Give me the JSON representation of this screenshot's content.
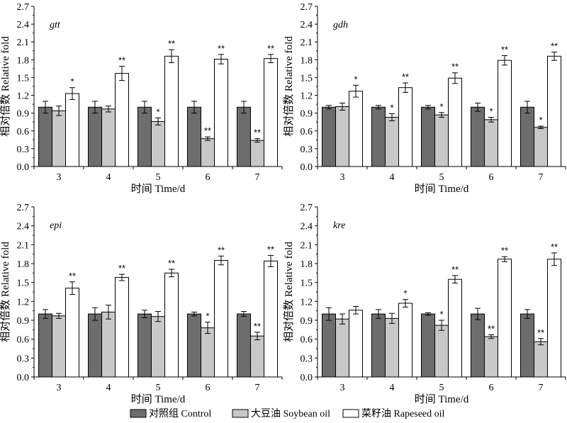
{
  "legend": [
    {
      "label": "对照组  Control",
      "color": "#6d6d6d"
    },
    {
      "label": "大豆油  Soybean oil",
      "color": "#c8c8c8"
    },
    {
      "label": "菜籽油  Rapeseed oil",
      "color": "#ffffff"
    }
  ],
  "chart_data": [
    {
      "type": "bar",
      "gene": "gtt",
      "categories": [
        "3",
        "4",
        "5",
        "6",
        "7"
      ],
      "xlabel": "时间 Time/d",
      "ylabel": "相对倍数 Relative fold",
      "ylim": [
        0,
        2.7
      ],
      "yticks": [
        "0.0",
        "0.3",
        "0.6",
        "0.9",
        "1.2",
        "1.5",
        "1.8",
        "2.1",
        "2.4",
        "2.7"
      ],
      "series": [
        {
          "name": "对照组 Control",
          "values": [
            1.0,
            1.0,
            1.0,
            1.0,
            1.0
          ],
          "errors": [
            0.1,
            0.1,
            0.1,
            0.1,
            0.1
          ],
          "sig": [
            "",
            "",
            "",
            "",
            ""
          ]
        },
        {
          "name": "大豆油 Soybean oil",
          "values": [
            0.94,
            0.97,
            0.76,
            0.47,
            0.44
          ],
          "errors": [
            0.08,
            0.05,
            0.06,
            0.03,
            0.03
          ],
          "sig": [
            "",
            "",
            "*",
            "**",
            "**"
          ]
        },
        {
          "name": "菜籽油 Rapeseed oil",
          "values": [
            1.23,
            1.57,
            1.86,
            1.81,
            1.82
          ],
          "errors": [
            0.1,
            0.12,
            0.11,
            0.08,
            0.07
          ],
          "sig": [
            "*",
            "**",
            "**",
            "**",
            "**"
          ]
        }
      ]
    },
    {
      "type": "bar",
      "gene": "gdh",
      "categories": [
        "3",
        "4",
        "5",
        "6",
        "7"
      ],
      "xlabel": "时间 Time/d",
      "ylabel": "相对倍数 Relative fold",
      "ylim": [
        0,
        2.7
      ],
      "yticks": [
        "0.0",
        "0.3",
        "0.6",
        "0.9",
        "1.2",
        "1.5",
        "1.8",
        "2.1",
        "2.4",
        "2.7"
      ],
      "series": [
        {
          "name": "对照组 Control",
          "values": [
            1.0,
            1.0,
            1.0,
            1.0,
            1.0
          ],
          "errors": [
            0.03,
            0.03,
            0.03,
            0.07,
            0.1
          ],
          "sig": [
            "",
            "",
            "",
            "",
            ""
          ]
        },
        {
          "name": "大豆油 Soybean oil",
          "values": [
            1.01,
            0.83,
            0.87,
            0.79,
            0.66
          ],
          "errors": [
            0.06,
            0.06,
            0.04,
            0.04,
            0.02
          ],
          "sig": [
            "",
            "*",
            "*",
            "*",
            "*"
          ]
        },
        {
          "name": "菜籽油 Rapeseed oil",
          "values": [
            1.27,
            1.33,
            1.49,
            1.79,
            1.86
          ],
          "errors": [
            0.1,
            0.08,
            0.09,
            0.08,
            0.07
          ],
          "sig": [
            "*",
            "**",
            "**",
            "**",
            "**"
          ]
        }
      ]
    },
    {
      "type": "bar",
      "gene": "epi",
      "categories": [
        "3",
        "4",
        "5",
        "6",
        "7"
      ],
      "xlabel": "时间 Time/d",
      "ylabel": "相对倍数 Relative fold",
      "ylim": [
        0,
        2.7
      ],
      "yticks": [
        "0.0",
        "0.3",
        "0.6",
        "0.9",
        "1.2",
        "1.5",
        "1.8",
        "2.1",
        "2.4",
        "2.7"
      ],
      "series": [
        {
          "name": "对照组 Control",
          "values": [
            1.0,
            1.0,
            1.0,
            1.0,
            1.0
          ],
          "errors": [
            0.07,
            0.1,
            0.06,
            0.03,
            0.04
          ],
          "sig": [
            "",
            "",
            "",
            "",
            ""
          ]
        },
        {
          "name": "大豆油 Soybean oil",
          "values": [
            0.97,
            1.03,
            0.96,
            0.78,
            0.65
          ],
          "errors": [
            0.04,
            0.11,
            0.08,
            0.09,
            0.06
          ],
          "sig": [
            "",
            "",
            "",
            "*",
            "**"
          ]
        },
        {
          "name": "菜籽油 Rapeseed oil",
          "values": [
            1.41,
            1.58,
            1.65,
            1.85,
            1.84
          ],
          "errors": [
            0.1,
            0.05,
            0.06,
            0.07,
            0.09
          ],
          "sig": [
            "**",
            "**",
            "**",
            "**",
            "**"
          ]
        }
      ]
    },
    {
      "type": "bar",
      "gene": "kre",
      "categories": [
        "3",
        "4",
        "5",
        "6",
        "7"
      ],
      "xlabel": "时间 Time/d",
      "ylabel": "相对倍数 Relative fold",
      "ylim": [
        0,
        2.7
      ],
      "yticks": [
        "0.0",
        "0.3",
        "0.6",
        "0.9",
        "1.2",
        "1.5",
        "1.8",
        "2.1",
        "2.4",
        "2.7"
      ],
      "series": [
        {
          "name": "对照组 Control",
          "values": [
            1.0,
            1.0,
            1.0,
            1.0,
            1.0
          ],
          "errors": [
            0.1,
            0.07,
            0.02,
            0.09,
            0.07
          ],
          "sig": [
            "",
            "",
            "",
            "",
            ""
          ]
        },
        {
          "name": "大豆油 Soybean oil",
          "values": [
            0.92,
            0.93,
            0.82,
            0.64,
            0.56
          ],
          "errors": [
            0.08,
            0.08,
            0.08,
            0.03,
            0.05
          ],
          "sig": [
            "",
            "",
            "*",
            "**",
            "**"
          ]
        },
        {
          "name": "菜籽油 Rapeseed oil",
          "values": [
            1.06,
            1.17,
            1.55,
            1.87,
            1.87
          ],
          "errors": [
            0.06,
            0.06,
            0.06,
            0.04,
            0.1
          ],
          "sig": [
            "",
            "*",
            "**",
            "**",
            "**"
          ]
        }
      ]
    }
  ]
}
